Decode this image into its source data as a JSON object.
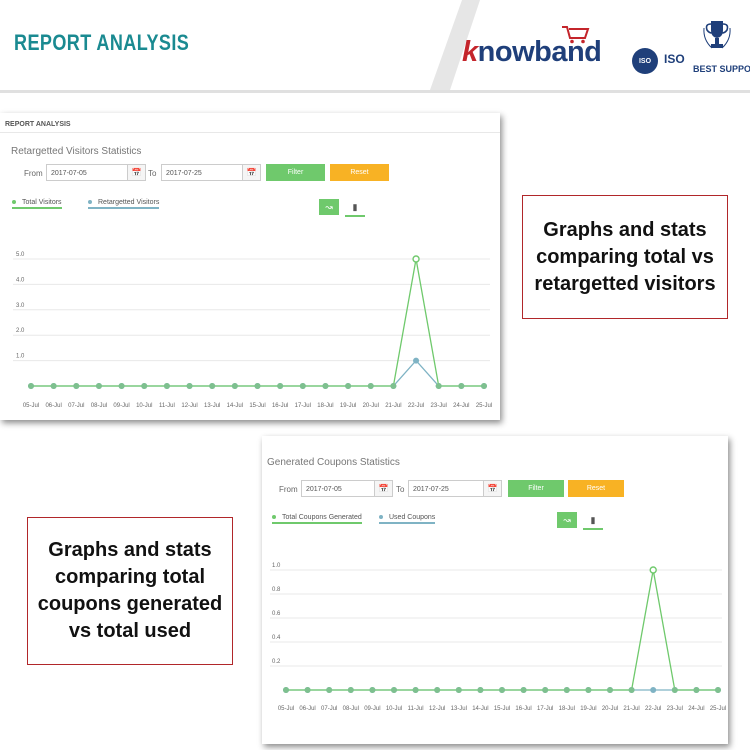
{
  "header": {
    "title": "REPORT ANALYSIS",
    "logo_k": "k",
    "logo_text": "nowband",
    "iso1": "ISO",
    "iso_label": "ISO",
    "best_support": "BEST SUPPORT"
  },
  "panels": [
    {
      "top_label": "REPORT ANALYSIS",
      "title": "Retargetted Visitors Statistics",
      "from_label": "From",
      "from_value": "2017-07-05",
      "to_label": "To",
      "to_value": "2017-07-25",
      "filter_label": "Filter",
      "reset_label": "Reset",
      "legend": [
        {
          "name": "Total Visitors",
          "color": "#6fc96c"
        },
        {
          "name": "Retargetted Visitors",
          "color": "#7fb3c4"
        }
      ]
    },
    {
      "title": "Generated Coupons Statistics",
      "from_label": "From",
      "from_value": "2017-07-05",
      "to_label": "To",
      "to_value": "2017-07-25",
      "filter_label": "Filter",
      "reset_label": "Reset",
      "legend": [
        {
          "name": "Total Coupons Generated",
          "color": "#6fc96c"
        },
        {
          "name": "Used Coupons",
          "color": "#7fb3c4"
        }
      ]
    }
  ],
  "callouts": [
    "Graphs and stats comparing total vs retargetted visitors",
    "Graphs and stats comparing total coupons generated vs total used"
  ],
  "chart_data": [
    {
      "type": "line",
      "categories": [
        "05-Jul",
        "06-Jul",
        "07-Jul",
        "08-Jul",
        "09-Jul",
        "10-Jul",
        "11-Jul",
        "12-Jul",
        "13-Jul",
        "14-Jul",
        "15-Jul",
        "16-Jul",
        "17-Jul",
        "18-Jul",
        "19-Jul",
        "20-Jul",
        "21-Jul",
        "22-Jul",
        "23-Jul",
        "24-Jul",
        "25-Jul"
      ],
      "yticks": [
        "1.0",
        "2.0",
        "3.0",
        "4.0",
        "5.0"
      ],
      "ylim": [
        0,
        5
      ],
      "grid": true,
      "legend_position": "top-left",
      "series": [
        {
          "name": "Total Visitors",
          "color": "#6fc96c",
          "values": [
            0,
            0,
            0,
            0,
            0,
            0,
            0,
            0,
            0,
            0,
            0,
            0,
            0,
            0,
            0,
            0,
            0,
            5,
            0,
            0,
            0
          ]
        },
        {
          "name": "Retargetted Visitors",
          "color": "#7fb3c4",
          "values": [
            0,
            0,
            0,
            0,
            0,
            0,
            0,
            0,
            0,
            0,
            0,
            0,
            0,
            0,
            0,
            0,
            0,
            1,
            0,
            0,
            0
          ]
        }
      ]
    },
    {
      "type": "line",
      "categories": [
        "05-Jul",
        "06-Jul",
        "07-Jul",
        "08-Jul",
        "09-Jul",
        "10-Jul",
        "11-Jul",
        "12-Jul",
        "13-Jul",
        "14-Jul",
        "15-Jul",
        "16-Jul",
        "17-Jul",
        "18-Jul",
        "19-Jul",
        "20-Jul",
        "21-Jul",
        "22-Jul",
        "23-Jul",
        "24-Jul",
        "25-Jul"
      ],
      "yticks": [
        "0.2",
        "0.4",
        "0.6",
        "0.8",
        "1.0"
      ],
      "ylim": [
        0,
        1
      ],
      "grid": true,
      "legend_position": "top-left",
      "series": [
        {
          "name": "Total Coupons Generated",
          "color": "#6fc96c",
          "values": [
            0,
            0,
            0,
            0,
            0,
            0,
            0,
            0,
            0,
            0,
            0,
            0,
            0,
            0,
            0,
            0,
            0,
            1,
            0,
            0,
            0
          ]
        },
        {
          "name": "Used Coupons",
          "color": "#7fb3c4",
          "values": [
            0,
            0,
            0,
            0,
            0,
            0,
            0,
            0,
            0,
            0,
            0,
            0,
            0,
            0,
            0,
            0,
            0,
            0,
            0,
            0,
            0
          ]
        }
      ]
    }
  ]
}
